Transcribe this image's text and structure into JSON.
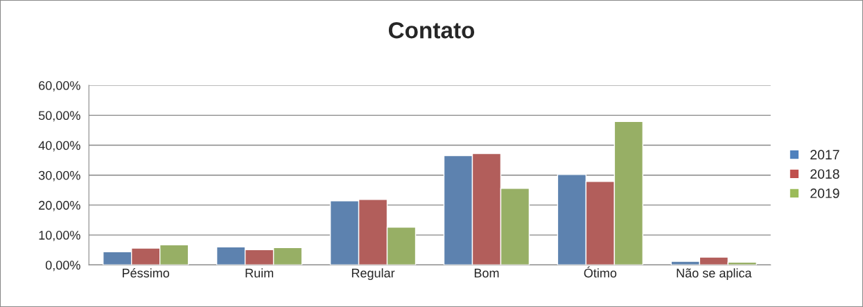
{
  "chart_data": {
    "type": "bar",
    "title": "Contato",
    "categories": [
      "Péssimo",
      "Ruim",
      "Regular",
      "Bom",
      "Ótimo",
      "Não se aplica"
    ],
    "series": [
      {
        "name": "2017",
        "color": "#4f81bd",
        "values": [
          4.4,
          6.0,
          21.4,
          36.5,
          30.2,
          1.2
        ]
      },
      {
        "name": "2018",
        "color": "#c0504d",
        "values": [
          5.6,
          5.1,
          21.9,
          37.2,
          27.9,
          2.6
        ]
      },
      {
        "name": "2019",
        "color": "#9bbb59",
        "values": [
          6.7,
          5.8,
          12.6,
          25.6,
          47.9,
          0.9
        ]
      }
    ],
    "ylim": [
      0,
      60
    ],
    "yticks": [
      {
        "value": 0,
        "label": "0,00%"
      },
      {
        "value": 10,
        "label": "10,00%"
      },
      {
        "value": 20,
        "label": "20,00%"
      },
      {
        "value": 30,
        "label": "30,00%"
      },
      {
        "value": 40,
        "label": "40,00%"
      },
      {
        "value": 50,
        "label": "50,00%"
      },
      {
        "value": 60,
        "label": "60,00%"
      }
    ],
    "grid": "y",
    "legend": "right"
  }
}
